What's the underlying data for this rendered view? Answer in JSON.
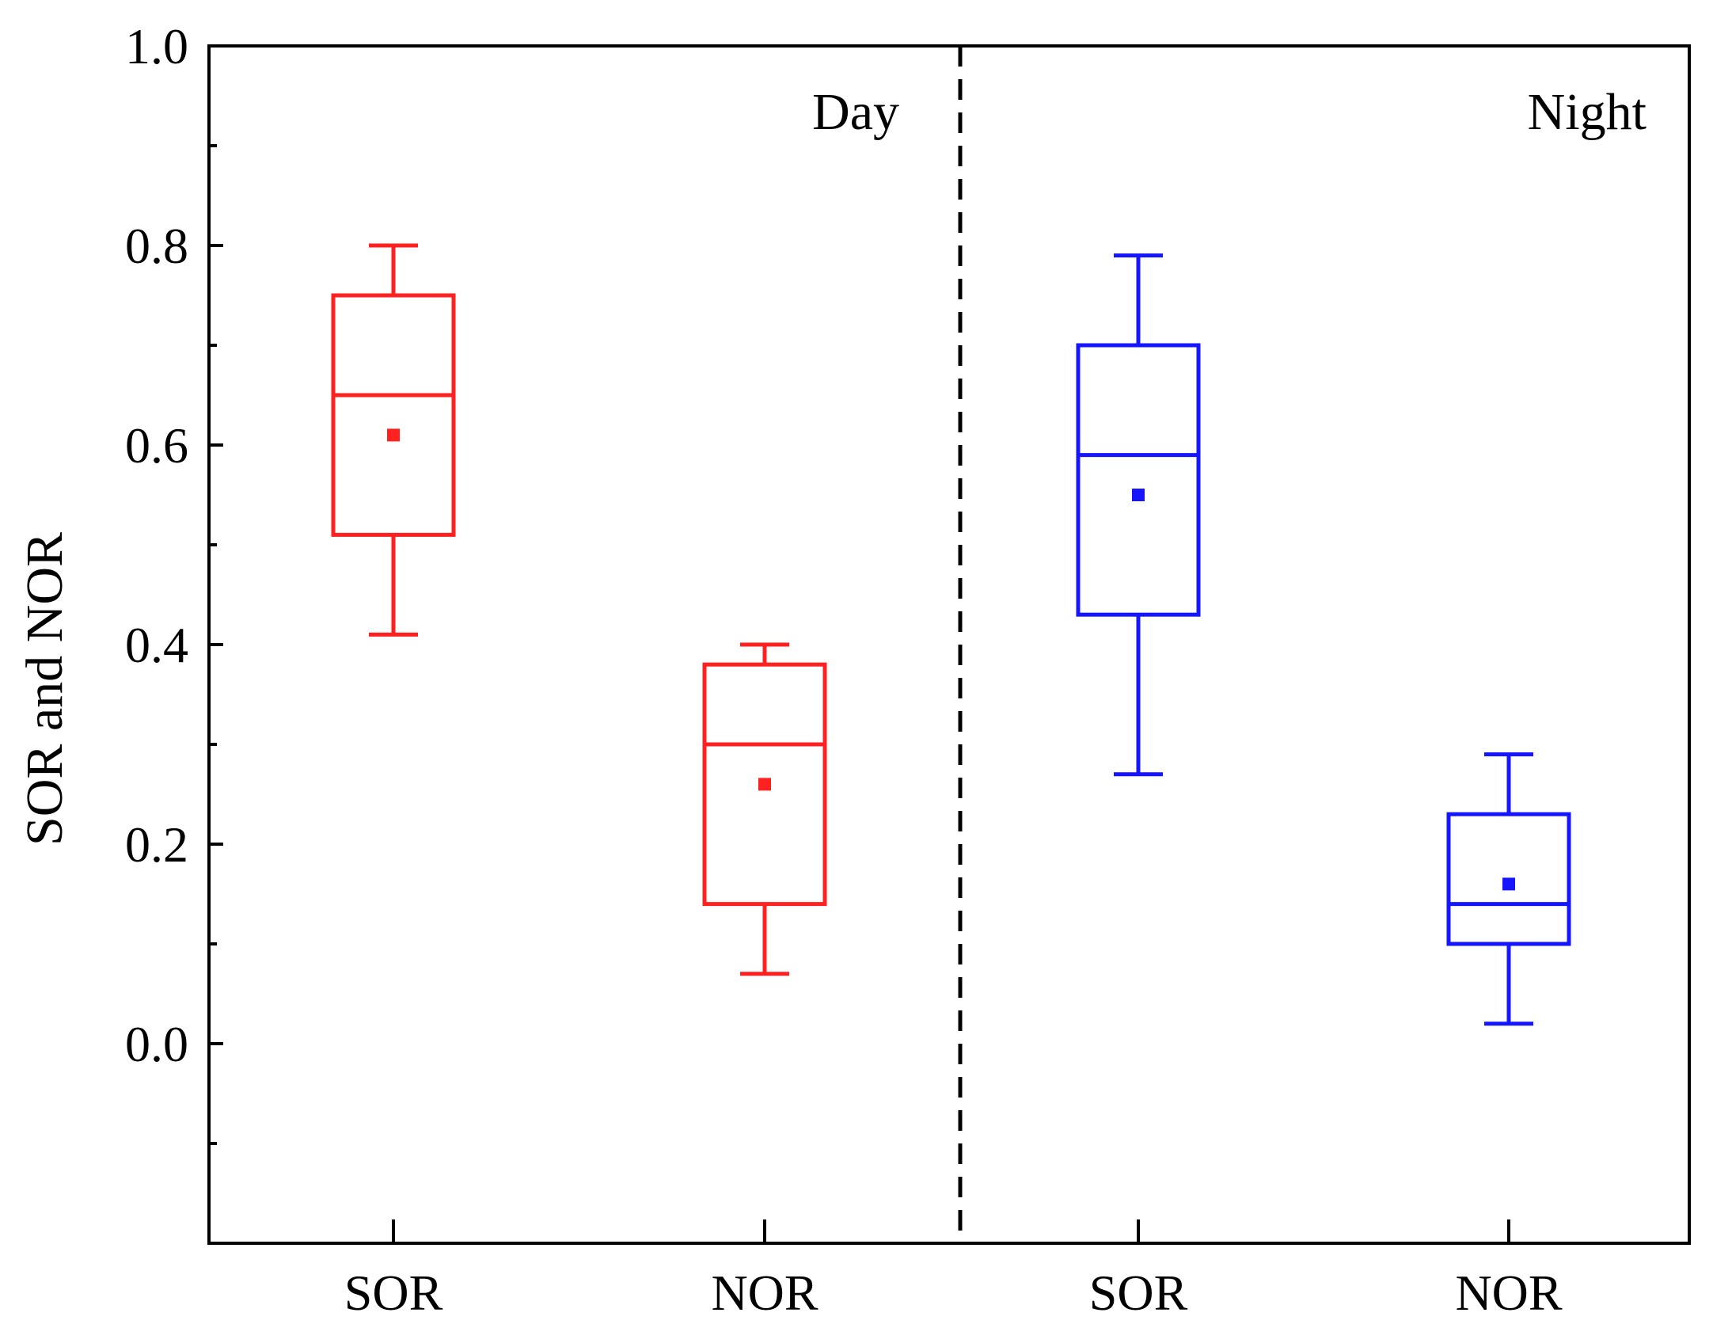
{
  "chart_data": {
    "type": "box",
    "title": "",
    "xlabel": "",
    "ylabel": "SOR and NOR",
    "ylim": [
      -0.2,
      1.0
    ],
    "yticks": [
      "1.0",
      "0.8",
      "0.6",
      "0.4",
      "0.2",
      "0.0"
    ],
    "ytick_values": [
      1.0,
      0.8,
      0.6,
      0.4,
      0.2,
      0.0
    ],
    "panels": [
      {
        "label": "Day",
        "color": "#ff2020"
      },
      {
        "label": "Night",
        "color": "#1515ff"
      }
    ],
    "categories": [
      "SOR",
      "NOR",
      "SOR",
      "NOR"
    ],
    "boxes": [
      {
        "category": "SOR",
        "panel": "Day",
        "color": "#ff2020",
        "whisker_low": 0.41,
        "q1": 0.51,
        "median": 0.65,
        "q3": 0.75,
        "whisker_high": 0.8,
        "mean": 0.61
      },
      {
        "category": "NOR",
        "panel": "Day",
        "color": "#ff2020",
        "whisker_low": 0.07,
        "q1": 0.14,
        "median": 0.3,
        "q3": 0.38,
        "whisker_high": 0.4,
        "mean": 0.26
      },
      {
        "category": "SOR",
        "panel": "Night",
        "color": "#1515ff",
        "whisker_low": 0.27,
        "q1": 0.43,
        "median": 0.59,
        "q3": 0.7,
        "whisker_high": 0.79,
        "mean": 0.55
      },
      {
        "category": "NOR",
        "panel": "Night",
        "color": "#1515ff",
        "whisker_low": 0.02,
        "q1": 0.1,
        "median": 0.14,
        "q3": 0.23,
        "whisker_high": 0.29,
        "mean": 0.16
      }
    ]
  }
}
